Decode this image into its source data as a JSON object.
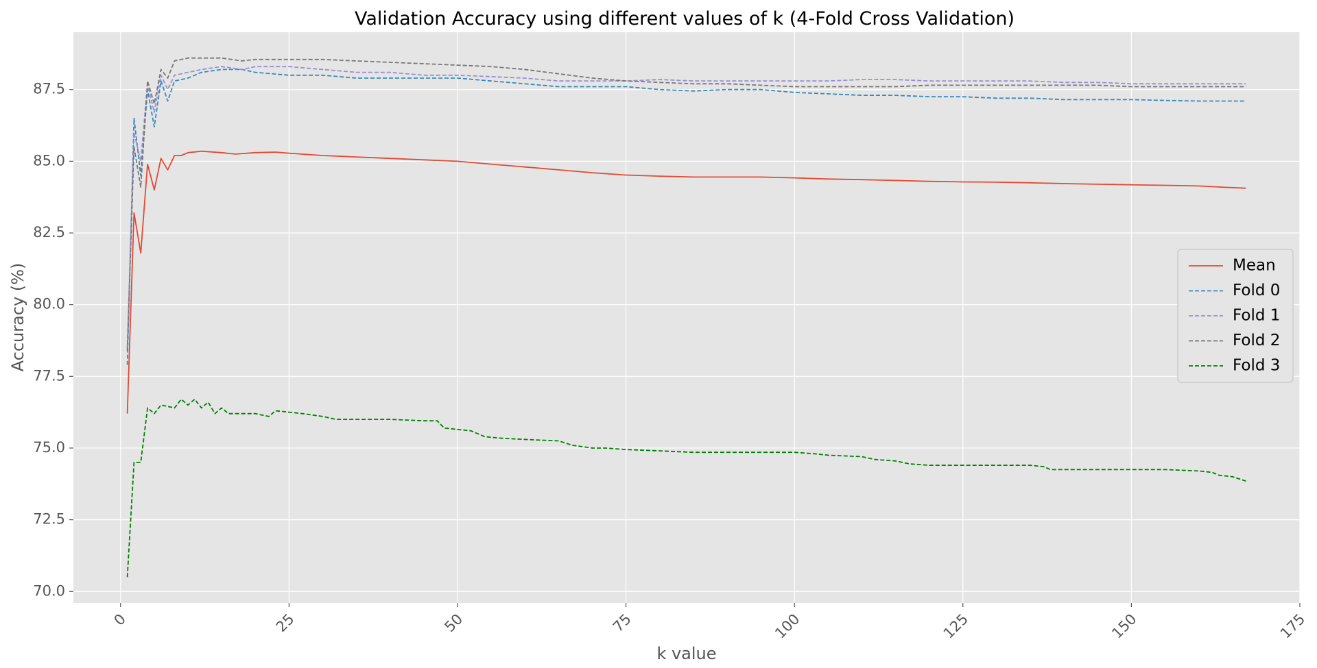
{
  "chart_data": {
    "type": "line",
    "title": "Validation Accuracy using different values of k (4-Fold Cross Validation)",
    "xlabel": "k value",
    "ylabel": "Accuracy (%)",
    "xlim": [
      -7,
      175
    ],
    "ylim": [
      69.6,
      89.5
    ],
    "xticks": [
      0,
      25,
      50,
      75,
      100,
      125,
      150,
      175
    ],
    "xtick_labels": [
      "0",
      "25",
      "50",
      "75",
      "100",
      "125",
      "150",
      "175"
    ],
    "yticks": [
      70.0,
      72.5,
      75.0,
      77.5,
      80.0,
      82.5,
      85.0,
      87.5
    ],
    "ytick_labels": [
      "70.0",
      "72.5",
      "75.0",
      "77.5",
      "80.0",
      "82.5",
      "85.0",
      "87.5"
    ],
    "xtick_rotation": 45,
    "grid": true,
    "legend_position": "center-right",
    "background_color": "#e5e5e5",
    "grid_color": "#ffffff",
    "series": [
      {
        "name": "Mean",
        "color": "#e24a33",
        "style": "solid",
        "x": [
          1,
          2,
          3,
          4,
          5,
          6,
          7,
          8,
          9,
          10,
          12,
          15,
          17,
          20,
          23,
          25,
          30,
          35,
          40,
          45,
          50,
          55,
          60,
          65,
          70,
          75,
          80,
          85,
          90,
          95,
          100,
          105,
          110,
          115,
          120,
          125,
          130,
          135,
          140,
          145,
          150,
          155,
          160,
          163,
          167
        ],
        "y": [
          76.2,
          83.2,
          81.8,
          84.9,
          84.0,
          85.1,
          84.7,
          85.2,
          85.2,
          85.3,
          85.35,
          85.3,
          85.25,
          85.3,
          85.32,
          85.28,
          85.2,
          85.15,
          85.1,
          85.05,
          85.0,
          84.9,
          84.8,
          84.7,
          84.6,
          84.52,
          84.48,
          84.45,
          84.45,
          84.45,
          84.42,
          84.38,
          84.36,
          84.33,
          84.3,
          84.28,
          84.27,
          84.25,
          84.22,
          84.2,
          84.18,
          84.16,
          84.14,
          84.1,
          84.06
        ]
      },
      {
        "name": "Fold 0",
        "color": "#348abd",
        "style": "dashed",
        "x": [
          1,
          2,
          3,
          4,
          5,
          6,
          7,
          8,
          10,
          12,
          15,
          18,
          20,
          25,
          30,
          35,
          40,
          45,
          50,
          55,
          60,
          65,
          70,
          75,
          80,
          85,
          90,
          95,
          100,
          105,
          110,
          115,
          120,
          125,
          130,
          135,
          140,
          145,
          150,
          155,
          160,
          167
        ],
        "y": [
          77.9,
          86.5,
          84.5,
          87.5,
          86.2,
          87.8,
          87.1,
          87.8,
          87.9,
          88.1,
          88.2,
          88.2,
          88.1,
          88.0,
          88.0,
          87.9,
          87.9,
          87.9,
          87.9,
          87.8,
          87.7,
          87.6,
          87.6,
          87.6,
          87.5,
          87.45,
          87.5,
          87.5,
          87.4,
          87.35,
          87.3,
          87.3,
          87.25,
          87.25,
          87.2,
          87.2,
          87.15,
          87.15,
          87.15,
          87.12,
          87.1,
          87.1
        ]
      },
      {
        "name": "Fold 1",
        "color": "#988ed5",
        "style": "dashed",
        "x": [
          1,
          2,
          3,
          4,
          5,
          6,
          7,
          8,
          10,
          12,
          15,
          18,
          20,
          25,
          30,
          35,
          40,
          45,
          50,
          55,
          60,
          65,
          70,
          75,
          80,
          85,
          90,
          95,
          100,
          105,
          110,
          115,
          120,
          125,
          130,
          135,
          140,
          145,
          150,
          155,
          160,
          167
        ],
        "y": [
          78.5,
          86.0,
          85.0,
          87.7,
          86.7,
          88.0,
          87.5,
          88.0,
          88.1,
          88.2,
          88.3,
          88.2,
          88.3,
          88.3,
          88.2,
          88.1,
          88.1,
          88.0,
          88.0,
          87.95,
          87.9,
          87.8,
          87.8,
          87.8,
          87.85,
          87.8,
          87.8,
          87.8,
          87.8,
          87.8,
          87.85,
          87.85,
          87.8,
          87.8,
          87.8,
          87.8,
          87.75,
          87.75,
          87.7,
          87.7,
          87.7,
          87.7
        ]
      },
      {
        "name": "Fold 2",
        "color": "#777777",
        "style": "dashed",
        "x": [
          1,
          2,
          3,
          4,
          5,
          6,
          7,
          8,
          10,
          12,
          15,
          18,
          20,
          25,
          30,
          35,
          40,
          45,
          50,
          55,
          60,
          65,
          70,
          75,
          80,
          85,
          90,
          95,
          100,
          105,
          110,
          115,
          120,
          125,
          130,
          135,
          140,
          145,
          150,
          155,
          160,
          167
        ],
        "y": [
          78.4,
          85.5,
          84.1,
          87.8,
          87.0,
          88.2,
          87.9,
          88.5,
          88.6,
          88.6,
          88.6,
          88.5,
          88.55,
          88.55,
          88.55,
          88.5,
          88.45,
          88.4,
          88.35,
          88.3,
          88.2,
          88.05,
          87.9,
          87.8,
          87.75,
          87.7,
          87.7,
          87.65,
          87.6,
          87.6,
          87.6,
          87.6,
          87.65,
          87.65,
          87.65,
          87.65,
          87.65,
          87.65,
          87.6,
          87.6,
          87.6,
          87.6
        ]
      },
      {
        "name": "Fold 3",
        "color": "#008000",
        "style": "dashed",
        "x": [
          1,
          2,
          3,
          4,
          5,
          6,
          8,
          9,
          10,
          11,
          12,
          13,
          14,
          15,
          16,
          18,
          20,
          22,
          23,
          25,
          27,
          30,
          32,
          35,
          40,
          45,
          47,
          48,
          50,
          52,
          54,
          56,
          60,
          65,
          67,
          70,
          72,
          75,
          80,
          85,
          90,
          95,
          100,
          103,
          105,
          110,
          112,
          115,
          117,
          120,
          125,
          130,
          135,
          137,
          138,
          140,
          145,
          150,
          155,
          160,
          162,
          163,
          165,
          167
        ],
        "y": [
          70.5,
          74.5,
          74.5,
          76.4,
          76.2,
          76.5,
          76.4,
          76.7,
          76.5,
          76.7,
          76.4,
          76.6,
          76.2,
          76.4,
          76.2,
          76.2,
          76.2,
          76.1,
          76.3,
          76.25,
          76.2,
          76.1,
          76.0,
          76.0,
          76.0,
          75.95,
          75.95,
          75.7,
          75.65,
          75.6,
          75.4,
          75.35,
          75.3,
          75.25,
          75.1,
          75.0,
          75.0,
          74.95,
          74.9,
          74.85,
          74.85,
          74.85,
          74.85,
          74.8,
          74.75,
          74.7,
          74.6,
          74.55,
          74.45,
          74.4,
          74.4,
          74.4,
          74.4,
          74.35,
          74.25,
          74.25,
          74.25,
          74.25,
          74.25,
          74.2,
          74.15,
          74.05,
          74.0,
          73.85
        ]
      }
    ]
  }
}
